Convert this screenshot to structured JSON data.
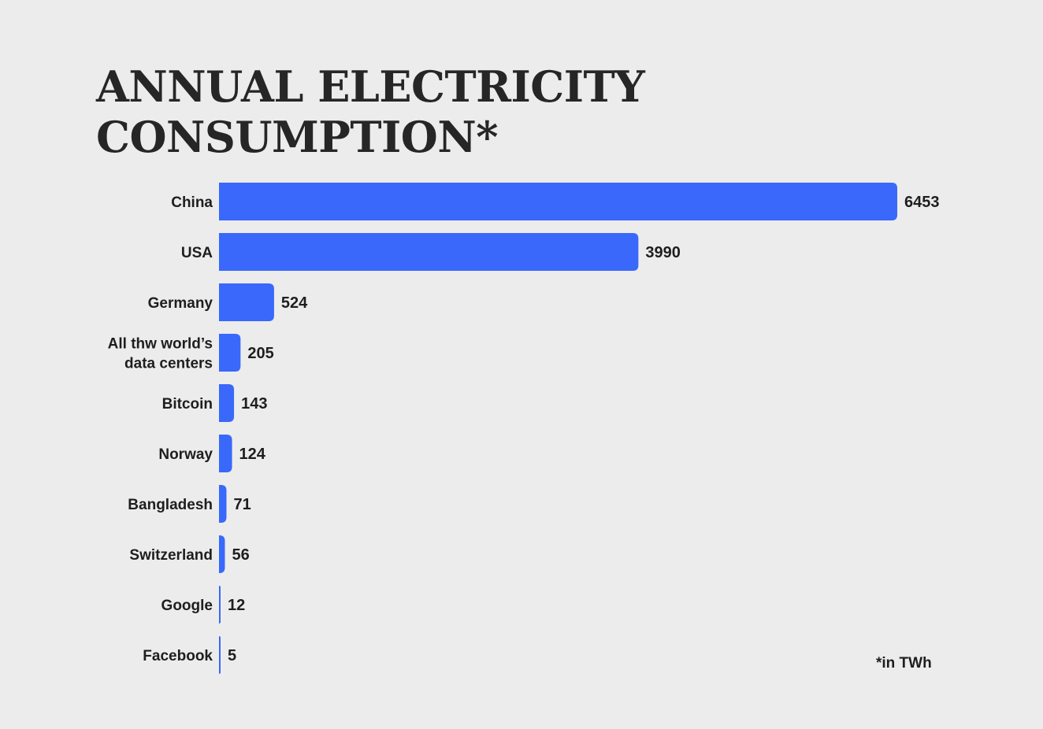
{
  "chart_data": {
    "type": "bar",
    "orientation": "horizontal",
    "title_lines": [
      "ANNUAL ELECTRICITY",
      "CONSUMPTION*"
    ],
    "categories": [
      [
        "China"
      ],
      [
        "USA"
      ],
      [
        "Germany"
      ],
      [
        "All thw world’s",
        "data centers"
      ],
      [
        "Bitcoin"
      ],
      [
        "Norway"
      ],
      [
        "Bangladesh"
      ],
      [
        "Switzerland"
      ],
      [
        "Google"
      ],
      [
        "Facebook"
      ]
    ],
    "values": [
      6453,
      3990,
      524,
      205,
      143,
      124,
      71,
      56,
      12,
      5
    ],
    "xlim": [
      0,
      6453
    ],
    "unit_note": "*in TWh",
    "bar_color": "#3968fb",
    "grid": false,
    "legend": "none"
  }
}
